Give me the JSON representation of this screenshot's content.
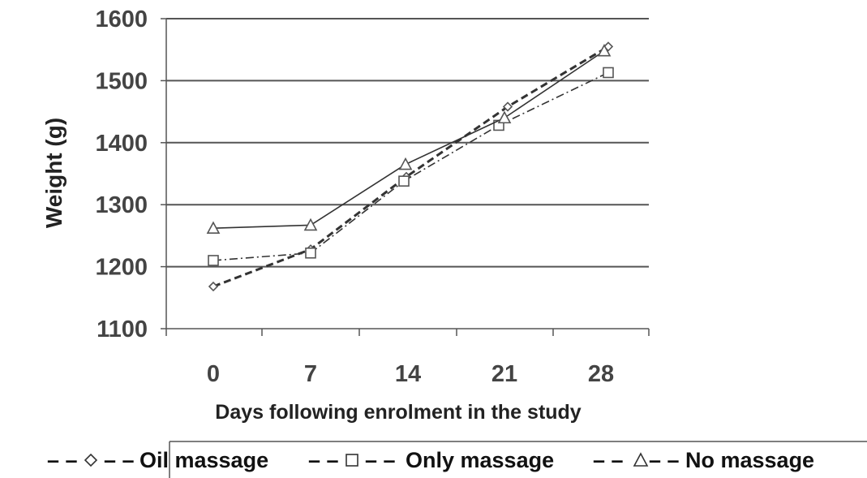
{
  "chart_data": {
    "type": "line",
    "xlabel": "Days following enrolment in the study",
    "ylabel": "Weight (g)",
    "categories": [
      "0",
      "7",
      "14",
      "21",
      "28"
    ],
    "ylim": [
      1100,
      1600
    ],
    "yticks": [
      "1100",
      "1200",
      "1300",
      "1400",
      "1500",
      "1600"
    ],
    "grid": "horizontal",
    "legend_position": "bottom",
    "series": [
      {
        "name": "Oil massage",
        "marker": "diamond",
        "line": "dashed-bold",
        "values": [
          1168,
          1228,
          1345,
          1458,
          1555
        ]
      },
      {
        "name": "Only massage",
        "marker": "square",
        "line": "dash-dot",
        "values": [
          1210,
          1222,
          1338,
          1428,
          1513
        ]
      },
      {
        "name": "No massage",
        "marker": "triangle",
        "line": "solid",
        "values": [
          1262,
          1267,
          1365,
          1440,
          1548
        ]
      }
    ]
  },
  "legend": {
    "items": [
      {
        "label": "Oil massage",
        "prefix": "– –",
        "suffix": "– –",
        "marker_icon": "diamond-icon"
      },
      {
        "label": "Only massage",
        "prefix": "– –",
        "suffix": "– –",
        "marker_icon": "square-icon"
      },
      {
        "label": "No massage",
        "prefix": "– –",
        "suffix": "– –",
        "marker_icon": "triangle-icon"
      }
    ]
  },
  "colors": {
    "line": "#333333",
    "grid": "#555555",
    "axis": "#555555",
    "text": "#444444"
  }
}
